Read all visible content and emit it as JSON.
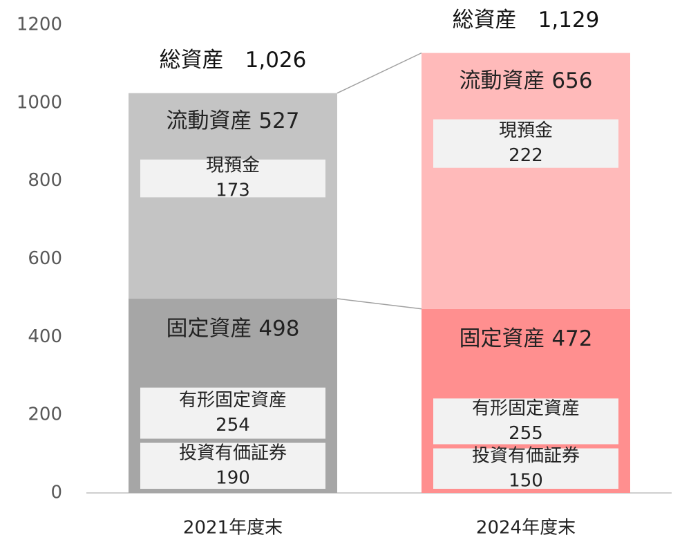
{
  "chart_data": {
    "type": "bar",
    "stacked": true,
    "ylim": [
      0,
      1200
    ],
    "yticks": [
      0,
      200,
      400,
      600,
      800,
      1000,
      1200
    ],
    "grid": false,
    "categories": [
      "2021年度末",
      "2024年度末"
    ],
    "totals": [
      {
        "label": "総資産",
        "value": "1,026"
      },
      {
        "label": "総資産",
        "value": "1,129"
      }
    ],
    "series": [
      {
        "name": "固定資産",
        "values": [
          498,
          472
        ],
        "colors": [
          "#a6a6a6",
          "#ff8f8f"
        ]
      },
      {
        "name": "流動資産",
        "values": [
          527,
          656
        ],
        "colors": [
          "#c4c4c4",
          "#ffbaba"
        ]
      }
    ],
    "breakdown": [
      [
        {
          "parent": "流動資産",
          "label": "現預金",
          "value": 173
        },
        {
          "parent": "固定資産",
          "label": "有形固定資産",
          "value": 254
        },
        {
          "parent": "固定資産",
          "label": "投資有価証券",
          "value": 190
        }
      ],
      [
        {
          "parent": "流動資産",
          "label": "現預金",
          "value": 222
        },
        {
          "parent": "固定資産",
          "label": "有形固定資産",
          "value": 255
        },
        {
          "parent": "固定資産",
          "label": "投資有価証券",
          "value": 150
        }
      ]
    ],
    "colors": {
      "box": "#f2f2f2",
      "connector": "#a0a0a0",
      "axis": "#bfbfbf"
    }
  }
}
